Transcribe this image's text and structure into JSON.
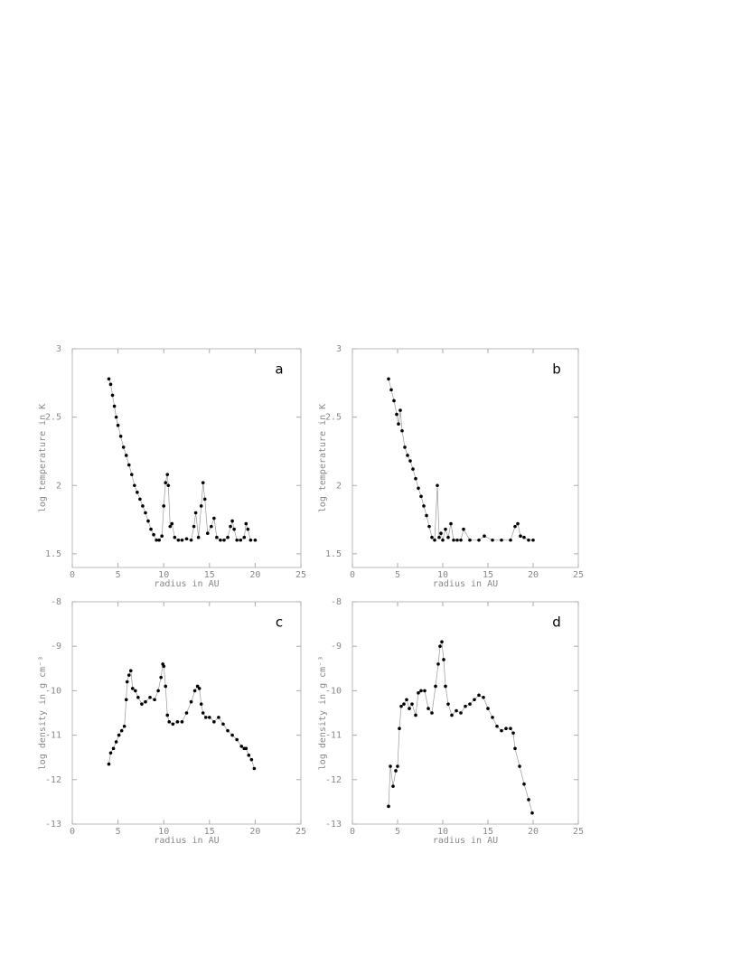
{
  "chart_data": [
    {
      "type": "line",
      "annotation": "a",
      "xlabel": "radius in AU",
      "ylabel": "log temperature in K",
      "color": "#000000",
      "xlim": [
        0,
        25
      ],
      "xticks": [
        0,
        5,
        10,
        15,
        20,
        25
      ],
      "ylim": [
        1.4,
        3
      ],
      "yticks": [
        1.5,
        2,
        2.5,
        3
      ],
      "x": [
        4.0,
        4.2,
        4.4,
        4.6,
        4.8,
        5.0,
        5.3,
        5.6,
        5.9,
        6.2,
        6.5,
        6.8,
        7.1,
        7.4,
        7.7,
        8.0,
        8.3,
        8.6,
        8.9,
        9.2,
        9.5,
        9.8,
        10.0,
        10.2,
        10.4,
        10.5,
        10.7,
        10.9,
        11.2,
        11.6,
        12.0,
        12.5,
        13.0,
        13.3,
        13.5,
        13.8,
        14.1,
        14.3,
        14.5,
        14.8,
        15.2,
        15.5,
        15.8,
        16.2,
        16.6,
        17.0,
        17.3,
        17.5,
        17.7,
        18.0,
        18.4,
        18.8,
        19.0,
        19.2,
        19.5,
        20.0
      ],
      "values": [
        2.78,
        2.74,
        2.66,
        2.58,
        2.5,
        2.44,
        2.36,
        2.28,
        2.22,
        2.15,
        2.08,
        2.0,
        1.95,
        1.9,
        1.85,
        1.8,
        1.74,
        1.68,
        1.64,
        1.6,
        1.6,
        1.63,
        1.85,
        2.02,
        2.08,
        2.0,
        1.7,
        1.72,
        1.62,
        1.6,
        1.6,
        1.61,
        1.6,
        1.7,
        1.8,
        1.62,
        1.85,
        2.02,
        1.9,
        1.65,
        1.7,
        1.76,
        1.62,
        1.6,
        1.6,
        1.62,
        1.7,
        1.74,
        1.68,
        1.6,
        1.6,
        1.62,
        1.72,
        1.68,
        1.6,
        1.6
      ]
    },
    {
      "type": "line",
      "annotation": "b",
      "xlabel": "radius in AU",
      "ylabel": "log temperature in K",
      "color": "#000000",
      "xlim": [
        0,
        25
      ],
      "xticks": [
        0,
        5,
        10,
        15,
        20,
        25
      ],
      "ylim": [
        1.4,
        3
      ],
      "yticks": [
        1.5,
        2,
        2.5,
        3
      ],
      "x": [
        4.0,
        4.3,
        4.6,
        4.9,
        5.1,
        5.3,
        5.5,
        5.8,
        6.1,
        6.4,
        6.7,
        7.0,
        7.3,
        7.6,
        7.9,
        8.2,
        8.5,
        8.8,
        9.1,
        9.4,
        9.6,
        9.8,
        10.0,
        10.3,
        10.6,
        10.9,
        11.2,
        11.6,
        12.0,
        12.3,
        13.0,
        14.0,
        14.6,
        15.5,
        16.5,
        17.5,
        18.0,
        18.3,
        18.6,
        19.0,
        19.5,
        20.0
      ],
      "values": [
        2.78,
        2.7,
        2.62,
        2.52,
        2.45,
        2.55,
        2.4,
        2.28,
        2.22,
        2.18,
        2.12,
        2.05,
        1.98,
        1.92,
        1.85,
        1.78,
        1.7,
        1.62,
        1.6,
        2.0,
        1.62,
        1.65,
        1.6,
        1.68,
        1.62,
        1.72,
        1.6,
        1.6,
        1.6,
        1.68,
        1.6,
        1.6,
        1.63,
        1.6,
        1.6,
        1.6,
        1.7,
        1.72,
        1.63,
        1.62,
        1.6,
        1.6
      ]
    },
    {
      "type": "line",
      "annotation": "c",
      "xlabel": "radius in AU",
      "ylabel": "log density in g cm⁻³",
      "color": "#000000",
      "xlim": [
        0,
        25
      ],
      "xticks": [
        0,
        5,
        10,
        15,
        20,
        25
      ],
      "ylim": [
        -13,
        -8
      ],
      "yticks": [
        -13,
        -12,
        -11,
        -10,
        -9,
        -8
      ],
      "x": [
        4.0,
        4.2,
        4.5,
        4.8,
        5.1,
        5.4,
        5.7,
        5.9,
        6.0,
        6.2,
        6.4,
        6.6,
        6.9,
        7.2,
        7.6,
        8.0,
        8.5,
        9.0,
        9.4,
        9.7,
        9.9,
        10.0,
        10.2,
        10.4,
        10.6,
        11.0,
        11.5,
        12.0,
        12.5,
        13.0,
        13.4,
        13.7,
        13.9,
        14.1,
        14.3,
        14.6,
        15.0,
        15.5,
        16.0,
        16.5,
        17.0,
        17.5,
        18.0,
        18.5,
        18.8,
        19.0,
        19.3,
        19.6,
        19.9
      ],
      "values": [
        -11.65,
        -11.4,
        -11.3,
        -11.15,
        -11.0,
        -10.9,
        -10.8,
        -10.2,
        -9.8,
        -9.65,
        -9.55,
        -9.95,
        -10.0,
        -10.15,
        -10.3,
        -10.25,
        -10.15,
        -10.2,
        -10.0,
        -9.7,
        -9.4,
        -9.45,
        -9.9,
        -10.55,
        -10.7,
        -10.75,
        -10.7,
        -10.7,
        -10.5,
        -10.25,
        -10.0,
        -9.9,
        -9.95,
        -10.3,
        -10.5,
        -10.6,
        -10.6,
        -10.7,
        -10.6,
        -10.75,
        -10.9,
        -11.0,
        -11.1,
        -11.25,
        -11.3,
        -11.3,
        -11.45,
        -11.55,
        -11.75
      ]
    },
    {
      "type": "line",
      "annotation": "d",
      "xlabel": "radius in AU",
      "ylabel": "log density in g cm⁻³",
      "color": "#000000",
      "xlim": [
        0,
        25
      ],
      "xticks": [
        0,
        5,
        10,
        15,
        20,
        25
      ],
      "ylim": [
        -13,
        -8
      ],
      "yticks": [
        -13,
        -12,
        -11,
        -10,
        -9,
        -8
      ],
      "x": [
        4.0,
        4.2,
        4.5,
        4.8,
        5.0,
        5.2,
        5.4,
        5.7,
        6.0,
        6.3,
        6.6,
        7.0,
        7.3,
        7.6,
        8.0,
        8.4,
        8.8,
        9.2,
        9.5,
        9.7,
        9.9,
        10.1,
        10.3,
        10.6,
        11.0,
        11.5,
        12.0,
        12.5,
        13.0,
        13.5,
        14.0,
        14.5,
        15.0,
        15.5,
        16.0,
        16.5,
        17.0,
        17.5,
        17.8,
        18.0,
        18.5,
        19.0,
        19.5,
        19.9
      ],
      "values": [
        -12.6,
        -11.7,
        -12.15,
        -11.8,
        -11.7,
        -10.85,
        -10.35,
        -10.3,
        -10.2,
        -10.4,
        -10.3,
        -10.55,
        -10.05,
        -10.0,
        -10.0,
        -10.4,
        -10.5,
        -9.9,
        -9.4,
        -9.0,
        -8.9,
        -9.3,
        -9.9,
        -10.3,
        -10.55,
        -10.45,
        -10.5,
        -10.35,
        -10.3,
        -10.2,
        -10.1,
        -10.15,
        -10.4,
        -10.6,
        -10.8,
        -10.9,
        -10.85,
        -10.85,
        -10.95,
        -11.3,
        -11.7,
        -12.1,
        -12.45,
        -12.75
      ]
    }
  ]
}
